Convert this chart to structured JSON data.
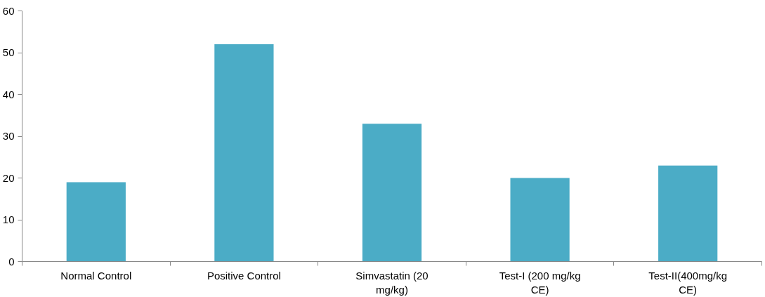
{
  "chart_data": {
    "type": "bar",
    "categories": [
      "Normal Control",
      "Positive Control",
      "Simvastatin (20 mg/kg)",
      "Test-I (200 mg/kg CE)",
      "Test-II(400mg/kg CE)"
    ],
    "values": [
      19,
      52,
      33,
      20,
      23
    ],
    "color": "#4bacc6",
    "ylim": [
      0,
      60
    ],
    "yticks": [
      0,
      10,
      20,
      30,
      40,
      50,
      60
    ],
    "grid": false
  }
}
